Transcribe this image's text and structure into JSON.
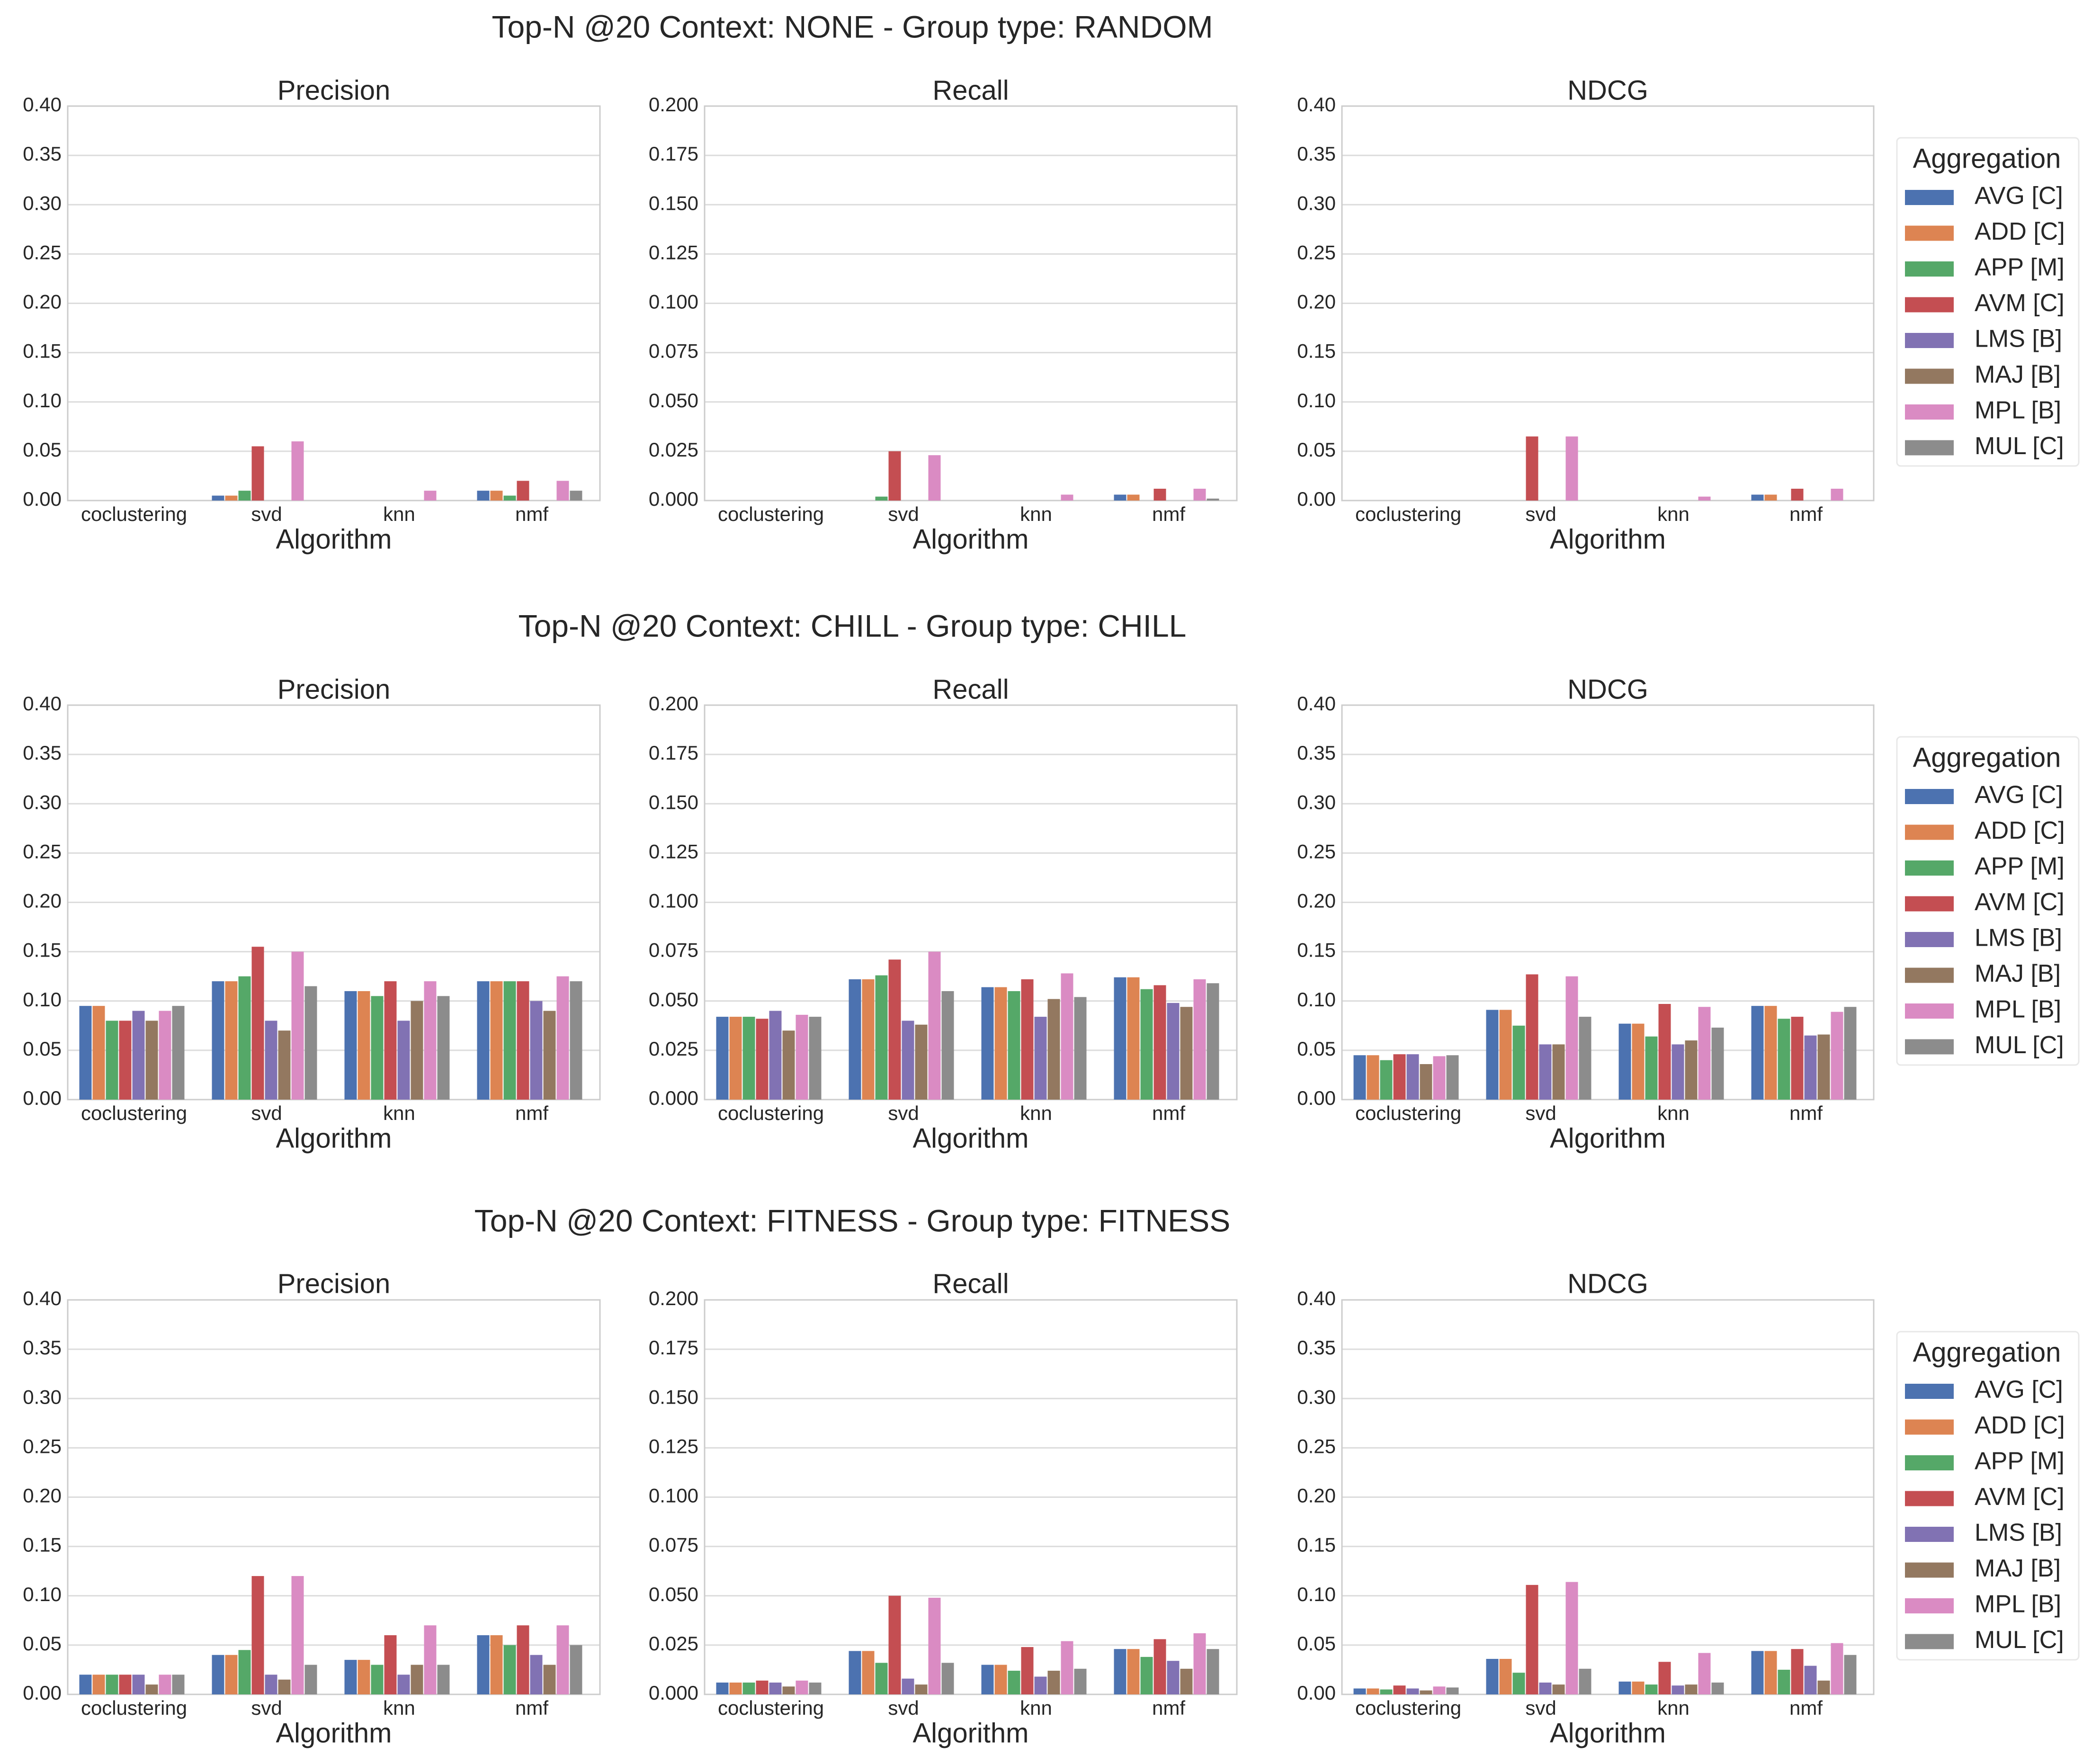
{
  "colors": {
    "AVG [C]": "#4c72b0",
    "ADD [C]": "#dd8452",
    "APP [M]": "#55a868",
    "AVM [C]": "#c44e52",
    "LMS [B]": "#8172b3",
    "MAJ [B]": "#937860",
    "MPL [B]": "#da8bc3",
    "MUL [C]": "#8c8c8c"
  },
  "chart_data": {
    "type": "bar",
    "xlabel": "Algorithm",
    "categories": [
      "coclustering",
      "svd",
      "knn",
      "nmf"
    ],
    "legend": {
      "title": "Aggregation",
      "entries": [
        "AVG [C]",
        "ADD [C]",
        "APP [M]",
        "AVM [C]",
        "LMS [B]",
        "MAJ [B]",
        "MPL [B]",
        "MUL [C]"
      ],
      "placement": "right"
    },
    "rows": [
      {
        "title": "Top-N @20 Context: NONE - Group type: RANDOM",
        "panels": [
          {
            "title": "Precision",
            "ylim": [
              0,
              0.4
            ],
            "ticks": [
              "0.00",
              "0.05",
              "0.10",
              "0.15",
              "0.20",
              "0.25",
              "0.30",
              "0.35",
              "0.40"
            ],
            "values": [
              [
                0,
                0,
                0,
                0,
                0,
                0,
                0,
                0
              ],
              [
                0.005,
                0.005,
                0.01,
                0.055,
                0,
                0,
                0.06,
                0
              ],
              [
                0,
                0,
                0,
                0,
                0,
                0,
                0.01,
                0
              ],
              [
                0.01,
                0.01,
                0.005,
                0.02,
                0,
                0,
                0.02,
                0.01
              ]
            ]
          },
          {
            "title": "Recall",
            "ylim": [
              0,
              0.2
            ],
            "ticks": [
              "0.000",
              "0.025",
              "0.050",
              "0.075",
              "0.100",
              "0.125",
              "0.150",
              "0.175",
              "0.200"
            ],
            "values": [
              [
                0,
                0,
                0,
                0,
                0,
                0,
                0,
                0
              ],
              [
                0,
                0,
                0.002,
                0.025,
                0,
                0,
                0.023,
                0
              ],
              [
                0,
                0,
                0,
                0,
                0,
                0,
                0.003,
                0
              ],
              [
                0.003,
                0.003,
                0,
                0.006,
                0,
                0,
                0.006,
                0.001
              ]
            ]
          },
          {
            "title": "NDCG",
            "ylim": [
              0,
              0.4
            ],
            "ticks": [
              "0.00",
              "0.05",
              "0.10",
              "0.15",
              "0.20",
              "0.25",
              "0.30",
              "0.35",
              "0.40"
            ],
            "values": [
              [
                0,
                0,
                0,
                0,
                0,
                0,
                0,
                0
              ],
              [
                0,
                0,
                0,
                0.065,
                0,
                0,
                0.065,
                0
              ],
              [
                0,
                0,
                0,
                0,
                0,
                0,
                0.004,
                0
              ],
              [
                0.006,
                0.006,
                0,
                0.012,
                0,
                0,
                0.012,
                0
              ]
            ]
          }
        ]
      },
      {
        "title": "Top-N @20 Context: CHILL - Group type: CHILL",
        "panels": [
          {
            "title": "Precision",
            "ylim": [
              0,
              0.4
            ],
            "ticks": [
              "0.00",
              "0.05",
              "0.10",
              "0.15",
              "0.20",
              "0.25",
              "0.30",
              "0.35",
              "0.40"
            ],
            "values": [
              [
                0.095,
                0.095,
                0.08,
                0.08,
                0.09,
                0.08,
                0.09,
                0.095
              ],
              [
                0.12,
                0.12,
                0.125,
                0.155,
                0.08,
                0.07,
                0.15,
                0.115
              ],
              [
                0.11,
                0.11,
                0.105,
                0.12,
                0.08,
                0.1,
                0.12,
                0.105
              ],
              [
                0.12,
                0.12,
                0.12,
                0.12,
                0.1,
                0.09,
                0.125,
                0.12
              ]
            ]
          },
          {
            "title": "Recall",
            "ylim": [
              0,
              0.2
            ],
            "ticks": [
              "0.000",
              "0.025",
              "0.050",
              "0.075",
              "0.100",
              "0.125",
              "0.150",
              "0.175",
              "0.200"
            ],
            "values": [
              [
                0.042,
                0.042,
                0.042,
                0.041,
                0.045,
                0.035,
                0.043,
                0.042
              ],
              [
                0.061,
                0.061,
                0.063,
                0.071,
                0.04,
                0.038,
                0.075,
                0.055
              ],
              [
                0.057,
                0.057,
                0.055,
                0.061,
                0.042,
                0.051,
                0.064,
                0.052
              ],
              [
                0.062,
                0.062,
                0.056,
                0.058,
                0.049,
                0.047,
                0.061,
                0.059
              ]
            ]
          },
          {
            "title": "NDCG",
            "ylim": [
              0,
              0.4
            ],
            "ticks": [
              "0.00",
              "0.05",
              "0.10",
              "0.15",
              "0.20",
              "0.25",
              "0.30",
              "0.35",
              "0.40"
            ],
            "values": [
              [
                0.045,
                0.045,
                0.04,
                0.046,
                0.046,
                0.036,
                0.044,
                0.045
              ],
              [
                0.091,
                0.091,
                0.075,
                0.127,
                0.056,
                0.056,
                0.125,
                0.084
              ],
              [
                0.077,
                0.077,
                0.064,
                0.097,
                0.056,
                0.06,
                0.094,
                0.073
              ],
              [
                0.095,
                0.095,
                0.082,
                0.084,
                0.065,
                0.066,
                0.089,
                0.094
              ]
            ]
          }
        ]
      },
      {
        "title": "Top-N @20 Context: FITNESS - Group type: FITNESS",
        "panels": [
          {
            "title": "Precision",
            "ylim": [
              0,
              0.4
            ],
            "ticks": [
              "0.00",
              "0.05",
              "0.10",
              "0.15",
              "0.20",
              "0.25",
              "0.30",
              "0.35",
              "0.40"
            ],
            "values": [
              [
                0.02,
                0.02,
                0.02,
                0.02,
                0.02,
                0.01,
                0.02,
                0.02
              ],
              [
                0.04,
                0.04,
                0.045,
                0.12,
                0.02,
                0.015,
                0.12,
                0.03
              ],
              [
                0.035,
                0.035,
                0.03,
                0.06,
                0.02,
                0.03,
                0.07,
                0.03
              ],
              [
                0.06,
                0.06,
                0.05,
                0.07,
                0.04,
                0.03,
                0.07,
                0.05
              ]
            ]
          },
          {
            "title": "Recall",
            "ylim": [
              0,
              0.2
            ],
            "ticks": [
              "0.000",
              "0.025",
              "0.050",
              "0.075",
              "0.100",
              "0.125",
              "0.150",
              "0.175",
              "0.200"
            ],
            "values": [
              [
                0.006,
                0.006,
                0.006,
                0.007,
                0.006,
                0.004,
                0.007,
                0.006
              ],
              [
                0.022,
                0.022,
                0.016,
                0.05,
                0.008,
                0.005,
                0.049,
                0.016
              ],
              [
                0.015,
                0.015,
                0.012,
                0.024,
                0.009,
                0.012,
                0.027,
                0.013
              ],
              [
                0.023,
                0.023,
                0.019,
                0.028,
                0.017,
                0.013,
                0.031,
                0.023
              ]
            ]
          },
          {
            "title": "NDCG",
            "ylim": [
              0,
              0.4
            ],
            "ticks": [
              "0.00",
              "0.05",
              "0.10",
              "0.15",
              "0.20",
              "0.25",
              "0.30",
              "0.35",
              "0.40"
            ],
            "values": [
              [
                0.006,
                0.006,
                0.005,
                0.009,
                0.006,
                0.004,
                0.008,
                0.007
              ],
              [
                0.036,
                0.036,
                0.022,
                0.111,
                0.012,
                0.01,
                0.114,
                0.026
              ],
              [
                0.013,
                0.013,
                0.01,
                0.033,
                0.009,
                0.01,
                0.042,
                0.012
              ],
              [
                0.044,
                0.044,
                0.025,
                0.046,
                0.029,
                0.014,
                0.052,
                0.04
              ]
            ]
          }
        ]
      }
    ]
  }
}
